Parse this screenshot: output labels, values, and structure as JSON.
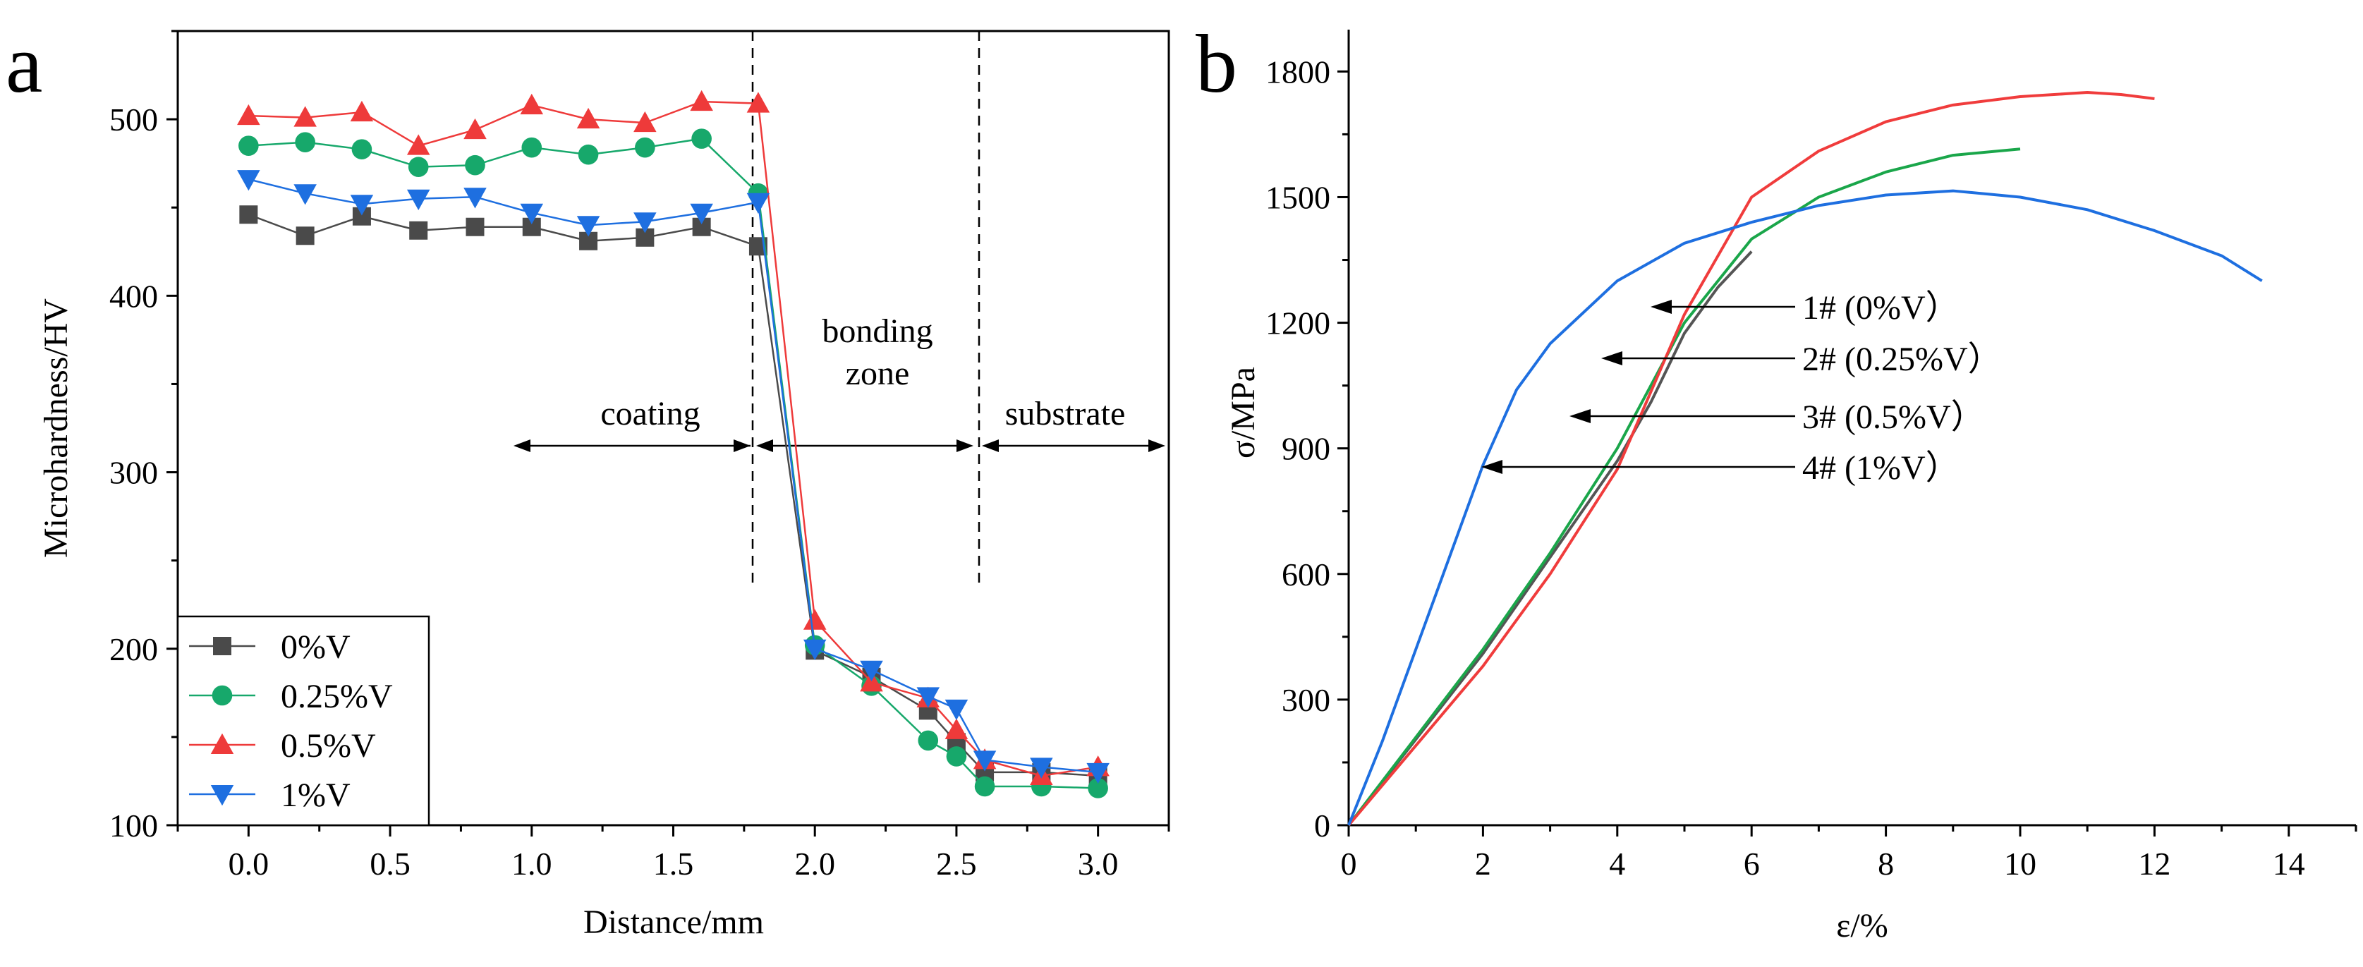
{
  "chart_data": [
    {
      "panel": "a",
      "type": "line",
      "title": "",
      "xlabel": "Distance/mm",
      "ylabel": "Microhardness/HV",
      "xlim": [
        -0.25,
        3.25
      ],
      "ylim": [
        100,
        550
      ],
      "xticks": [
        "0.0",
        "0.5",
        "1.0",
        "1.5",
        "2.0",
        "2.5",
        "3.0"
      ],
      "yticks": [
        "100",
        "200",
        "300",
        "400",
        "500"
      ],
      "x": [
        0.0,
        0.2,
        0.4,
        0.6,
        0.8,
        1.0,
        1.2,
        1.4,
        1.6,
        1.8,
        2.0,
        2.2,
        2.4,
        2.5,
        2.6,
        2.8,
        3.0
      ],
      "series": [
        {
          "name": "0%V",
          "color": "#4a4a4a",
          "marker": "square",
          "values": [
            446,
            434,
            445,
            437,
            439,
            439,
            431,
            433,
            439,
            428,
            199,
            184,
            165,
            147,
            130,
            130,
            128
          ]
        },
        {
          "name": "0.25%V",
          "color": "#17a86b",
          "marker": "circle",
          "values": [
            485,
            487,
            483,
            473,
            474,
            484,
            480,
            484,
            489,
            458,
            202,
            179,
            148,
            139,
            122,
            122,
            121
          ]
        },
        {
          "name": "0.5%V",
          "color": "#ee3a3a",
          "marker": "triangle-up",
          "values": [
            502,
            501,
            504,
            485,
            494,
            508,
            500,
            498,
            510,
            509,
            216,
            181,
            172,
            154,
            137,
            128,
            133
          ]
        },
        {
          "name": "1%V",
          "color": "#1e6fe0",
          "marker": "triangle-down",
          "values": [
            466,
            458,
            452,
            455,
            456,
            447,
            440,
            442,
            447,
            453,
            200,
            188,
            173,
            166,
            137,
            133,
            130
          ]
        }
      ],
      "annotations": [
        {
          "label": "coating"
        },
        {
          "label": "bonding"
        },
        {
          "label": "zone"
        },
        {
          "label": "substrate"
        }
      ],
      "dividers": [
        1.8,
        2.6
      ],
      "legend": "bottom-left"
    },
    {
      "panel": "b",
      "type": "line",
      "title": "",
      "xlabel": "ε/%",
      "ylabel": "σ/MPa",
      "xlim": [
        0,
        15
      ],
      "ylim": [
        0,
        1900
      ],
      "xticks": [
        "0",
        "2",
        "4",
        "6",
        "8",
        "10",
        "12",
        "14"
      ],
      "yticks": [
        "0",
        "300",
        "600",
        "900",
        "1200",
        "1500",
        "1800"
      ],
      "series": [
        {
          "name": "1# (0%V)",
          "color": "#555555",
          "points": [
            [
              0,
              0
            ],
            [
              1,
              205
            ],
            [
              2,
              410
            ],
            [
              3,
              640
            ],
            [
              4,
              870
            ],
            [
              4.5,
              1010
            ],
            [
              5,
              1175
            ],
            [
              5.5,
              1285
            ],
            [
              6,
              1370
            ]
          ]
        },
        {
          "name": "2# (0.25%V)",
          "color": "#1aa64a",
          "points": [
            [
              0,
              0
            ],
            [
              1,
              210
            ],
            [
              2,
              420
            ],
            [
              3,
              650
            ],
            [
              4,
              900
            ],
            [
              5,
              1200
            ],
            [
              6,
              1400
            ],
            [
              7,
              1500
            ],
            [
              8,
              1560
            ],
            [
              9,
              1600
            ],
            [
              10,
              1615
            ]
          ]
        },
        {
          "name": "3# (0.5%V)",
          "color": "#f03c3c",
          "points": [
            [
              0,
              0
            ],
            [
              1,
              190
            ],
            [
              2,
              380
            ],
            [
              3,
              600
            ],
            [
              4,
              850
            ],
            [
              5,
              1220
            ],
            [
              6,
              1500
            ],
            [
              7,
              1610
            ],
            [
              8,
              1680
            ],
            [
              9,
              1720
            ],
            [
              10,
              1740
            ],
            [
              11,
              1750
            ],
            [
              11.5,
              1745
            ],
            [
              12,
              1735
            ]
          ]
        },
        {
          "name": "4# (1%V)",
          "color": "#1e6fe0",
          "points": [
            [
              0,
              0
            ],
            [
              0.5,
              200
            ],
            [
              1,
              420
            ],
            [
              1.5,
              640
            ],
            [
              2,
              860
            ],
            [
              2.5,
              1040
            ],
            [
              3,
              1150
            ],
            [
              4,
              1300
            ],
            [
              5,
              1390
            ],
            [
              6,
              1440
            ],
            [
              7,
              1480
            ],
            [
              8,
              1505
            ],
            [
              9,
              1515
            ],
            [
              10,
              1500
            ],
            [
              11,
              1470
            ],
            [
              12,
              1420
            ],
            [
              13,
              1360
            ],
            [
              13.6,
              1300
            ]
          ]
        }
      ],
      "annotations": [
        {
          "label": "1# (0%V）"
        },
        {
          "label": "2# (0.25%V）"
        },
        {
          "label": "3# (0.5%V）"
        },
        {
          "label": "4# (1%V）"
        }
      ]
    }
  ]
}
